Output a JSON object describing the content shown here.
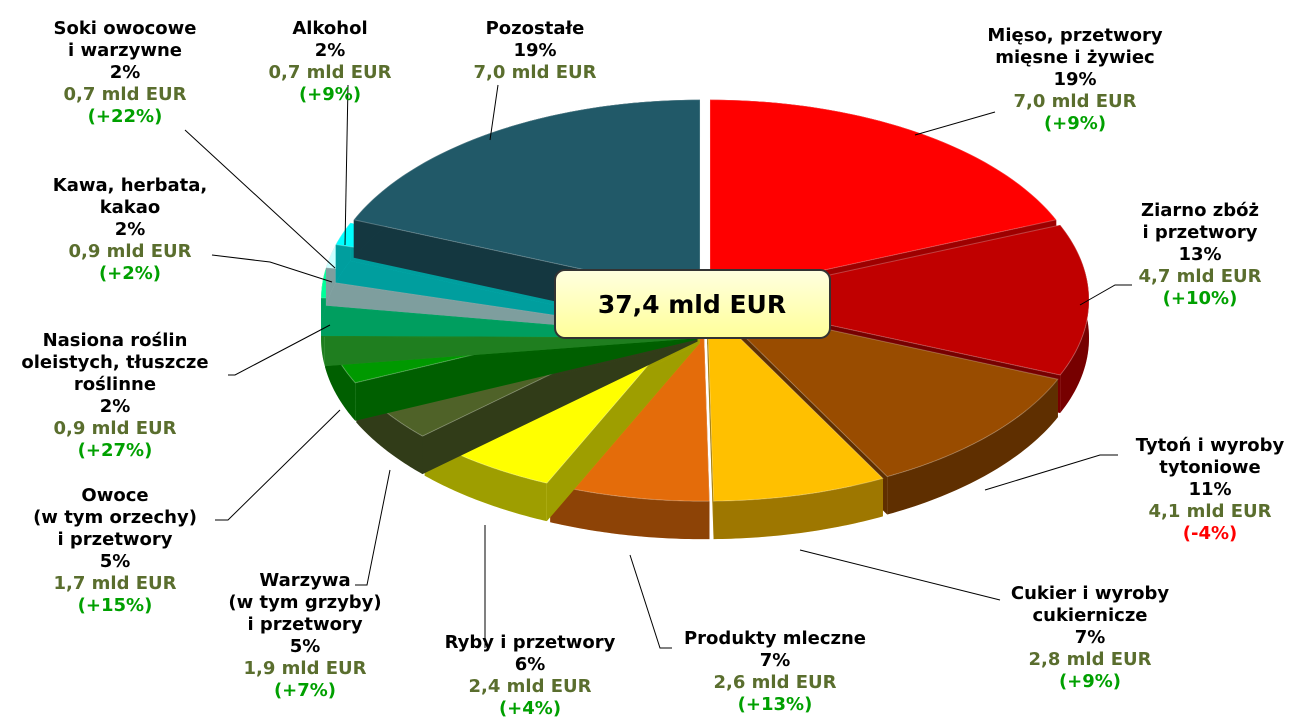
{
  "chart_data": {
    "type": "pie3d",
    "categories": [
      "Mięso, przetwory\nmięsne i żywiec",
      "Ziarno zbóż\ni przetwory",
      "Tytoń i wyroby\ntytoniowe",
      "Cukier i wyroby\ncukiernicze",
      "Produkty mleczne",
      "Ryby i przetwory",
      "Warzywa\n(w tym grzyby)\ni przetwory",
      "Owoce\n(w tym orzechy)\ni przetwory",
      "Nasiona roślin\noleistych, tłuszcze\nroślinne",
      "Kawa, herbata,\nkakao",
      "Soki owocowe\ni warzywne",
      "Alkohol",
      "Pozostałe"
    ],
    "values": [
      7.0,
      4.7,
      4.1,
      2.8,
      2.6,
      2.4,
      1.9,
      1.7,
      0.9,
      0.9,
      0.7,
      0.7,
      7.0
    ],
    "value_labels": [
      "7,0 mld EUR",
      "4,7 mld EUR",
      "4,1 mld EUR",
      "2,8 mld EUR",
      "2,6 mld EUR",
      "2,4 mld EUR",
      "1,9 mld EUR",
      "1,7 mld EUR",
      "0,9 mld EUR",
      "0,9 mld EUR",
      "0,7 mld EUR",
      "0,7 mld EUR",
      "7,0 mld EUR"
    ],
    "shares": [
      19,
      13,
      11,
      7,
      7,
      6,
      5,
      5,
      2,
      2,
      2,
      2,
      19
    ],
    "share_labels": [
      "19%",
      "13%",
      "11%",
      "7%",
      "7%",
      "6%",
      "5%",
      "5%",
      "2%",
      "2%",
      "2%",
      "2%",
      "19%"
    ],
    "changes": [
      9,
      10,
      -4,
      9,
      13,
      4,
      7,
      15,
      27,
      2,
      22,
      9,
      null
    ],
    "change_labels": [
      "(+9%)",
      "(+10%)",
      "(-4%)",
      "(+9%)",
      "(+13%)",
      "(+4%)",
      "(+7%)",
      "(+15%)",
      "(+27%)",
      "(+2%)",
      "(+22%)",
      "(+9%)",
      null
    ],
    "colors": [
      "#ff0000",
      "#c00000",
      "#994c00",
      "#ffc000",
      "#e46c0a",
      "#ffff00",
      "#4f6228",
      "#009900",
      "#33cc33",
      "#00ff99",
      "#ccffff",
      "#00ffff",
      "#215968"
    ],
    "positive_color": "#00a000",
    "negative_color": "#ff0000",
    "amount_color": "#5a6e2e",
    "total": 37.4,
    "total_label": "37,4 mld EUR"
  }
}
